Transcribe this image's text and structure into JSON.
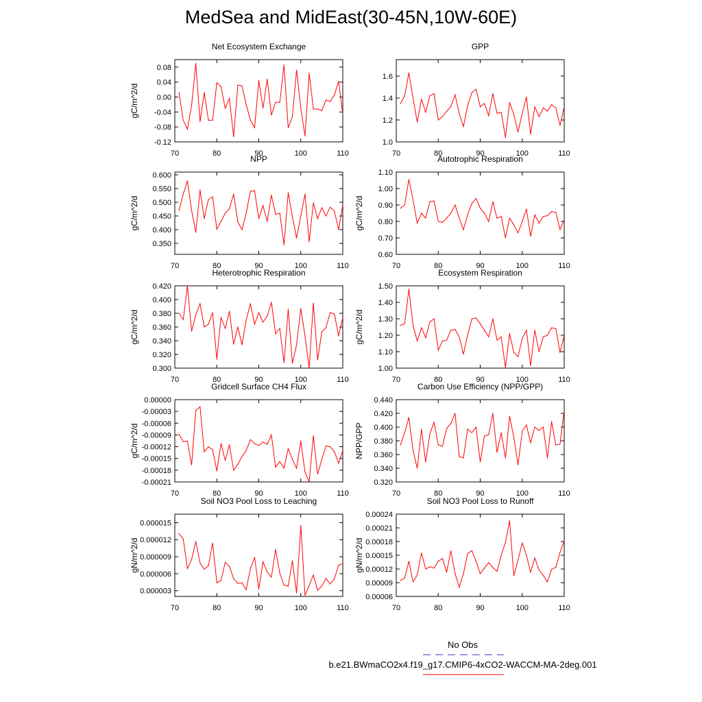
{
  "figure": {
    "title": "MedSea and MidEast(30-45N,10W-60E)",
    "series_color": "#ff0000",
    "obs_color": "#3333cc",
    "legend": {
      "obs_label": "No Obs",
      "case_label": "b.e21.BWmaCO2x4.f19_g17.CMIP6-4xCO2-WACCM-MA-2deg.001"
    }
  },
  "chart_data": [
    {
      "type": "line",
      "title": "Net Ecosystem Exchange",
      "ylabel": "gC/m^2/d",
      "xlim": [
        70,
        110
      ],
      "ylim": [
        -0.12,
        0.1
      ],
      "xticks": [
        70,
        80,
        90,
        100,
        110
      ],
      "xtick_labels": [
        "70",
        "80",
        "90",
        "100",
        "110"
      ],
      "yticks": [
        -0.12,
        -0.08,
        -0.04,
        0.0,
        0.04,
        0.08
      ],
      "ytick_labels": [
        "-0.12",
        "-0.08",
        "-0.04",
        "0.00",
        "0.04",
        "0.08"
      ],
      "x": [
        71,
        72,
        73,
        74,
        75,
        76,
        77,
        78,
        79,
        80,
        81,
        82,
        83,
        84,
        85,
        86,
        87,
        88,
        89,
        90,
        91,
        92,
        93,
        94,
        95,
        96,
        97,
        98,
        99,
        100,
        101,
        102,
        103,
        104,
        105,
        106,
        107,
        108,
        109,
        110
      ],
      "values": [
        0.012,
        -0.062,
        -0.086,
        -0.022,
        0.09,
        -0.066,
        0.012,
        -0.062,
        -0.062,
        0.038,
        0.028,
        -0.03,
        -0.004,
        -0.106,
        0.032,
        0.03,
        -0.02,
        -0.062,
        -0.082,
        0.044,
        -0.03,
        0.048,
        -0.048,
        -0.014,
        -0.014,
        0.086,
        -0.082,
        -0.052,
        0.072,
        -0.03,
        -0.104,
        0.064,
        -0.032,
        -0.032,
        -0.036,
        -0.008,
        -0.012,
        0.006,
        0.042,
        -0.046
      ]
    },
    {
      "type": "line",
      "title": "GPP",
      "ylabel": "",
      "xlim": [
        70,
        110
      ],
      "ylim": [
        1.0,
        1.75
      ],
      "xticks": [
        70,
        80,
        90,
        100,
        110
      ],
      "xtick_labels": [
        "70",
        "80",
        "90",
        "100",
        "110"
      ],
      "yticks": [
        1.0,
        1.2,
        1.4,
        1.6
      ],
      "ytick_labels": [
        "1.0",
        "1.2",
        "1.4",
        "1.6"
      ],
      "x": [
        71,
        72,
        73,
        74,
        75,
        76,
        77,
        78,
        79,
        80,
        81,
        82,
        83,
        84,
        85,
        86,
        87,
        88,
        89,
        90,
        91,
        92,
        93,
        94,
        95,
        96,
        97,
        98,
        99,
        100,
        101,
        102,
        103,
        104,
        105,
        106,
        107,
        108,
        109,
        110
      ],
      "values": [
        1.35,
        1.42,
        1.63,
        1.4,
        1.18,
        1.39,
        1.27,
        1.42,
        1.44,
        1.2,
        1.23,
        1.28,
        1.32,
        1.43,
        1.26,
        1.14,
        1.33,
        1.45,
        1.48,
        1.32,
        1.35,
        1.24,
        1.44,
        1.26,
        1.27,
        1.04,
        1.36,
        1.25,
        1.09,
        1.26,
        1.41,
        1.07,
        1.32,
        1.23,
        1.31,
        1.28,
        1.34,
        1.31,
        1.15,
        1.32
      ]
    },
    {
      "type": "line",
      "title": "NPP",
      "ylabel": "gC/m^2/d",
      "xlim": [
        70,
        110
      ],
      "ylim": [
        0.31,
        0.61
      ],
      "xticks": [
        70,
        80,
        90,
        100,
        110
      ],
      "xtick_labels": [
        "70",
        "80",
        "90",
        "100",
        "110"
      ],
      "yticks": [
        0.35,
        0.4,
        0.45,
        0.5,
        0.55,
        0.6
      ],
      "ytick_labels": [
        "0.350",
        "0.400",
        "0.450",
        "0.500",
        "0.550",
        "0.600"
      ],
      "x": [
        71,
        72,
        73,
        74,
        75,
        76,
        77,
        78,
        79,
        80,
        81,
        82,
        83,
        84,
        85,
        86,
        87,
        88,
        89,
        90,
        91,
        92,
        93,
        94,
        95,
        96,
        97,
        98,
        99,
        100,
        101,
        102,
        103,
        104,
        105,
        106,
        107,
        108,
        109,
        110
      ],
      "values": [
        0.47,
        0.53,
        0.578,
        0.47,
        0.39,
        0.545,
        0.44,
        0.51,
        0.52,
        0.402,
        0.43,
        0.46,
        0.476,
        0.53,
        0.428,
        0.4,
        0.46,
        0.54,
        0.542,
        0.44,
        0.488,
        0.43,
        0.526,
        0.456,
        0.46,
        0.345,
        0.535,
        0.448,
        0.37,
        0.45,
        0.53,
        0.356,
        0.498,
        0.44,
        0.48,
        0.45,
        0.482,
        0.468,
        0.4,
        0.49
      ]
    },
    {
      "type": "line",
      "title": "Autotrophic Respiration",
      "ylabel": "gC/m^2/d",
      "xlim": [
        70,
        110
      ],
      "ylim": [
        0.6,
        1.1
      ],
      "xticks": [
        70,
        80,
        90,
        100,
        110
      ],
      "xtick_labels": [
        "70",
        "80",
        "90",
        "100",
        "110"
      ],
      "yticks": [
        0.6,
        0.7,
        0.8,
        0.9,
        1.0,
        1.1
      ],
      "ytick_labels": [
        "0.60",
        "0.70",
        "0.80",
        "0.90",
        "1.00",
        "1.10"
      ],
      "x": [
        71,
        72,
        73,
        74,
        75,
        76,
        77,
        78,
        79,
        80,
        81,
        82,
        83,
        84,
        85,
        86,
        87,
        88,
        89,
        90,
        91,
        92,
        93,
        94,
        95,
        96,
        97,
        98,
        99,
        100,
        101,
        102,
        103,
        104,
        105,
        106,
        107,
        108,
        109,
        110
      ],
      "values": [
        0.88,
        0.9,
        1.055,
        0.93,
        0.79,
        0.85,
        0.82,
        0.92,
        0.925,
        0.8,
        0.795,
        0.82,
        0.85,
        0.9,
        0.82,
        0.75,
        0.84,
        0.91,
        0.94,
        0.88,
        0.85,
        0.8,
        0.92,
        0.82,
        0.83,
        0.7,
        0.82,
        0.78,
        0.73,
        0.8,
        0.875,
        0.71,
        0.84,
        0.79,
        0.83,
        0.835,
        0.86,
        0.855,
        0.75,
        0.81
      ]
    },
    {
      "type": "line",
      "title": "Heterotrophic Respiration",
      "ylabel": "gC/m^2/d",
      "xlim": [
        70,
        110
      ],
      "ylim": [
        0.3,
        0.42
      ],
      "xticks": [
        70,
        80,
        90,
        100,
        110
      ],
      "xtick_labels": [
        "70",
        "80",
        "90",
        "100",
        "110"
      ],
      "yticks": [
        0.3,
        0.32,
        0.34,
        0.36,
        0.38,
        0.4,
        0.42
      ],
      "ytick_labels": [
        "0.300",
        "0.320",
        "0.340",
        "0.360",
        "0.380",
        "0.400",
        "0.420"
      ],
      "x": [
        71,
        72,
        73,
        74,
        75,
        76,
        77,
        78,
        79,
        80,
        81,
        82,
        83,
        84,
        85,
        86,
        87,
        88,
        89,
        90,
        91,
        92,
        93,
        94,
        95,
        96,
        97,
        98,
        99,
        100,
        101,
        102,
        103,
        104,
        105,
        106,
        107,
        108,
        109,
        110
      ],
      "values": [
        0.38,
        0.371,
        0.42,
        0.354,
        0.378,
        0.394,
        0.36,
        0.364,
        0.381,
        0.313,
        0.374,
        0.358,
        0.383,
        0.335,
        0.36,
        0.334,
        0.37,
        0.394,
        0.364,
        0.381,
        0.367,
        0.376,
        0.396,
        0.35,
        0.358,
        0.308,
        0.386,
        0.307,
        0.334,
        0.387,
        0.347,
        0.3,
        0.395,
        0.312,
        0.353,
        0.359,
        0.381,
        0.379,
        0.347,
        0.374
      ]
    },
    {
      "type": "line",
      "title": "Ecosystem Respiration",
      "ylabel": "gC/m^2/d",
      "xlim": [
        70,
        110
      ],
      "ylim": [
        1.0,
        1.5
      ],
      "xticks": [
        70,
        80,
        90,
        100,
        110
      ],
      "xtick_labels": [
        "70",
        "80",
        "90",
        "100",
        "110"
      ],
      "yticks": [
        1.0,
        1.1,
        1.2,
        1.3,
        1.4,
        1.5
      ],
      "ytick_labels": [
        "1.00",
        "1.10",
        "1.20",
        "1.30",
        "1.40",
        "1.50"
      ],
      "x": [
        71,
        72,
        73,
        74,
        75,
        76,
        77,
        78,
        79,
        80,
        81,
        82,
        83,
        84,
        85,
        86,
        87,
        88,
        89,
        90,
        91,
        92,
        93,
        94,
        95,
        96,
        97,
        98,
        99,
        100,
        101,
        102,
        103,
        104,
        105,
        106,
        107,
        108,
        109,
        110
      ],
      "values": [
        1.26,
        1.27,
        1.48,
        1.26,
        1.165,
        1.245,
        1.185,
        1.28,
        1.3,
        1.11,
        1.165,
        1.17,
        1.23,
        1.235,
        1.19,
        1.085,
        1.2,
        1.3,
        1.305,
        1.27,
        1.23,
        1.19,
        1.3,
        1.17,
        1.19,
        1.005,
        1.21,
        1.095,
        1.07,
        1.18,
        1.23,
        1.015,
        1.23,
        1.1,
        1.19,
        1.2,
        1.245,
        1.24,
        1.095,
        1.2
      ]
    },
    {
      "type": "line",
      "title": "Gridcell Surface CH4 Flux",
      "ylabel": "gC/m^2/d",
      "xlim": [
        70,
        110
      ],
      "ylim": [
        -0.00021,
        0.0
      ],
      "xticks": [
        70,
        80,
        90,
        100,
        110
      ],
      "xtick_labels": [
        "70",
        "80",
        "90",
        "100",
        "110"
      ],
      "yticks": [
        -0.00021,
        -0.00018,
        -0.00015,
        -0.00012,
        -9e-05,
        -6e-05,
        -3e-05,
        0.0
      ],
      "ytick_labels": [
        "-0.00021",
        "-0.00018",
        "-0.00015",
        "-0.00012",
        "-0.00009",
        "-0.00006",
        "-0.00003",
        "0.00000"
      ],
      "x": [
        71,
        72,
        73,
        74,
        75,
        76,
        77,
        78,
        79,
        80,
        81,
        82,
        83,
        84,
        85,
        86,
        87,
        88,
        89,
        90,
        91,
        92,
        93,
        94,
        95,
        96,
        97,
        98,
        99,
        100,
        101,
        102,
        103,
        104,
        105,
        106,
        107,
        108,
        109,
        110
      ],
      "values": [
        -8.8e-05,
        -0.000107,
        -0.000106,
        -0.000167,
        -2.8e-05,
        -1.8e-05,
        -0.000133,
        -0.00012,
        -0.000128,
        -0.000182,
        -0.000112,
        -0.000155,
        -0.000115,
        -0.00018,
        -0.000165,
        -0.000145,
        -0.00013,
        -0.000102,
        -0.000112,
        -0.000117,
        -0.000108,
        -0.000114,
        -9e-05,
        -0.000172,
        -0.000158,
        -0.000175,
        -0.000125,
        -0.000152,
        -0.000175,
        -0.000105,
        -0.000185,
        -0.00021,
        -9.2e-05,
        -0.00019,
        -0.000153,
        -0.000118,
        -0.00012,
        -0.000133,
        -0.000162,
        -0.00013
      ]
    },
    {
      "type": "line",
      "title": "Carbon Use Efficiency (NPP/GPP)",
      "ylabel": "NPP/GPP",
      "xlim": [
        70,
        110
      ],
      "ylim": [
        0.32,
        0.44
      ],
      "xticks": [
        70,
        80,
        90,
        100,
        110
      ],
      "xtick_labels": [
        "70",
        "80",
        "90",
        "100",
        "110"
      ],
      "yticks": [
        0.32,
        0.34,
        0.36,
        0.38,
        0.4,
        0.42,
        0.44
      ],
      "ytick_labels": [
        "0.320",
        "0.340",
        "0.360",
        "0.380",
        "0.400",
        "0.420",
        "0.440"
      ],
      "x": [
        71,
        72,
        73,
        74,
        75,
        76,
        77,
        78,
        79,
        80,
        81,
        82,
        83,
        84,
        85,
        86,
        87,
        88,
        89,
        90,
        91,
        92,
        93,
        94,
        95,
        96,
        97,
        98,
        99,
        100,
        101,
        102,
        103,
        104,
        105,
        106,
        107,
        108,
        109,
        110
      ],
      "values": [
        0.374,
        0.392,
        0.414,
        0.366,
        0.34,
        0.397,
        0.349,
        0.39,
        0.407,
        0.374,
        0.372,
        0.398,
        0.405,
        0.42,
        0.357,
        0.355,
        0.397,
        0.392,
        0.4,
        0.349,
        0.387,
        0.389,
        0.42,
        0.363,
        0.392,
        0.355,
        0.416,
        0.385,
        0.345,
        0.394,
        0.403,
        0.377,
        0.4,
        0.395,
        0.4,
        0.355,
        0.408,
        0.374,
        0.375,
        0.425
      ]
    },
    {
      "type": "line",
      "title": "Soil NO3 Pool Loss to Leaching",
      "ylabel": "gN/m^2/d",
      "xlim": [
        70,
        110
      ],
      "ylim": [
        2e-06,
        1.65e-05
      ],
      "xticks": [
        70,
        80,
        90,
        100,
        110
      ],
      "xtick_labels": [
        "70",
        "80",
        "90",
        "100",
        "110"
      ],
      "yticks": [
        3e-06,
        6e-06,
        9e-06,
        1.2e-05,
        1.5e-05
      ],
      "ytick_labels": [
        "0.000003",
        "0.000006",
        "0.000009",
        "0.000012",
        "0.000015"
      ],
      "x": [
        71,
        72,
        73,
        74,
        75,
        76,
        77,
        78,
        79,
        80,
        81,
        82,
        83,
        84,
        85,
        86,
        87,
        88,
        89,
        90,
        91,
        92,
        93,
        94,
        95,
        96,
        97,
        98,
        99,
        100,
        101,
        102,
        103,
        104,
        105,
        106,
        107,
        108,
        109,
        110
      ],
      "values": [
        1.31e-05,
        1.21e-05,
        6.9e-06,
        8.5e-06,
        1.17e-05,
        7.9e-06,
        6.8e-06,
        7.4e-06,
        1.14e-05,
        4.4e-06,
        4.8e-06,
        8e-06,
        7.3e-06,
        5.1e-06,
        4.3e-06,
        4.4e-06,
        3.2e-06,
        6.9e-06,
        8.9e-06,
        3.3e-06,
        8.1e-06,
        6.3e-06,
        5.4e-06,
        1.03e-05,
        6.1e-06,
        4e-06,
        3.8e-06,
        8.3e-06,
        2.6e-06,
        1.45e-05,
        2.2e-06,
        3.9e-06,
        5.8e-06,
        3.1e-06,
        3.8e-06,
        5.2e-06,
        4.2e-06,
        5.1e-06,
        7.5e-06,
        7.8e-06
      ]
    },
    {
      "type": "line",
      "title": "Soil NO3 Pool Loss to Runoff",
      "ylabel": "gN/m^2/d",
      "xlim": [
        70,
        110
      ],
      "ylim": [
        6e-05,
        0.00024
      ],
      "xticks": [
        70,
        80,
        90,
        100,
        110
      ],
      "xtick_labels": [
        "70",
        "80",
        "90",
        "100",
        "110"
      ],
      "yticks": [
        6e-05,
        9e-05,
        0.00012,
        0.00015,
        0.00018,
        0.00021,
        0.00024
      ],
      "ytick_labels": [
        "0.00006",
        "0.00009",
        "0.00012",
        "0.00015",
        "0.00018",
        "0.00021",
        "0.00024"
      ],
      "x": [
        71,
        72,
        73,
        74,
        75,
        76,
        77,
        78,
        79,
        80,
        81,
        82,
        83,
        84,
        85,
        86,
        87,
        88,
        89,
        90,
        91,
        92,
        93,
        94,
        95,
        96,
        97,
        98,
        99,
        100,
        101,
        102,
        103,
        104,
        105,
        106,
        107,
        108,
        109,
        110
      ],
      "values": [
        9.5e-05,
        0.0001,
        0.000137,
        9.2e-05,
        0.000107,
        0.000155,
        0.00012,
        0.000125,
        0.000122,
        0.000137,
        0.000143,
        0.000113,
        0.00016,
        0.00011,
        8e-05,
        0.00011,
        0.000154,
        0.00016,
        0.000137,
        0.00011,
        0.000122,
        0.000134,
        0.000123,
        0.000115,
        0.00015,
        0.000178,
        0.000226,
        0.000105,
        0.00014,
        0.000177,
        0.00015,
        0.000113,
        0.000144,
        0.000118,
        0.000106,
        9.2e-05,
        0.000119,
        0.000124,
        0.000156,
        0.000182
      ]
    }
  ]
}
